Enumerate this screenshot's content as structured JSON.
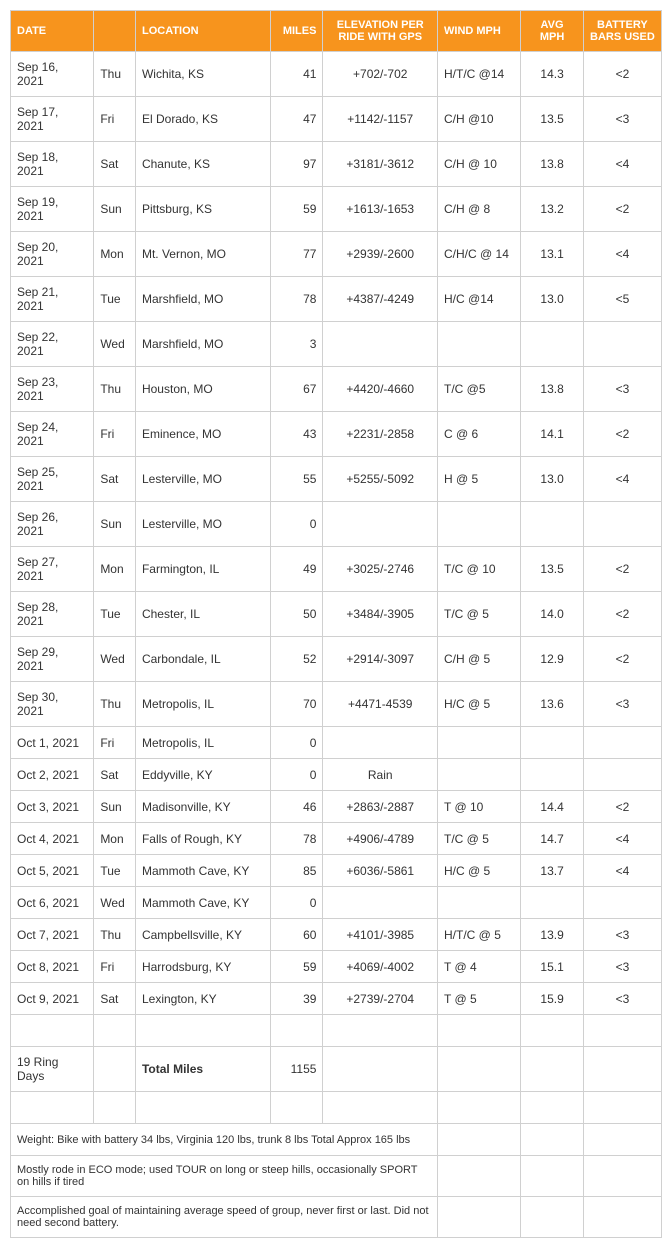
{
  "headers": {
    "date": "DATE",
    "day": "",
    "location": "LOCATION",
    "miles": "MILES",
    "elevation": "ELEVATION PER RIDE WITH GPS",
    "wind": "WIND MPH",
    "avg": "AVG MPH",
    "battery": "BATTERY BARS USED"
  },
  "rows": [
    {
      "date": "Sep 16, 2021",
      "day": "Thu",
      "location": "Wichita, KS",
      "miles": "41",
      "elevation": "+702/-702",
      "wind": "H/T/C @14",
      "avg": "14.3",
      "battery": "<2"
    },
    {
      "date": "Sep 17, 2021",
      "day": "Fri",
      "location": "El Dorado, KS",
      "miles": "47",
      "elevation": "+1142/-1157",
      "wind": "C/H @10",
      "avg": "13.5",
      "battery": "<3"
    },
    {
      "date": "Sep 18, 2021",
      "day": "Sat",
      "location": "Chanute, KS",
      "miles": "97",
      "elevation": "+3181/-3612",
      "wind": "C/H @ 10",
      "avg": "13.8",
      "battery": "<4"
    },
    {
      "date": "Sep 19, 2021",
      "day": "Sun",
      "location": "Pittsburg, KS",
      "miles": "59",
      "elevation": "+1613/-1653",
      "wind": "C/H @ 8",
      "avg": "13.2",
      "battery": "<2"
    },
    {
      "date": "Sep 20, 2021",
      "day": "Mon",
      "location": "Mt. Vernon, MO",
      "miles": "77",
      "elevation": "+2939/-2600",
      "wind": "C/H/C @ 14",
      "avg": "13.1",
      "battery": "<4"
    },
    {
      "date": "Sep 21, 2021",
      "day": "Tue",
      "location": "Marshfield, MO",
      "miles": "78",
      "elevation": "+4387/-4249",
      "wind": "H/C @14",
      "avg": "13.0",
      "battery": "<5"
    },
    {
      "date": "Sep 22, 2021",
      "day": "Wed",
      "location": "Marshfield, MO",
      "miles": "3",
      "elevation": "",
      "wind": "",
      "avg": "",
      "battery": ""
    },
    {
      "date": "Sep 23, 2021",
      "day": "Thu",
      "location": "Houston, MO",
      "miles": "67",
      "elevation": "+4420/-4660",
      "wind": "T/C @5",
      "avg": "13.8",
      "battery": "<3"
    },
    {
      "date": "Sep 24, 2021",
      "day": "Fri",
      "location": "Eminence, MO",
      "miles": "43",
      "elevation": "+2231/-2858",
      "wind": "C @ 6",
      "avg": "14.1",
      "battery": "<2"
    },
    {
      "date": "Sep 25, 2021",
      "day": "Sat",
      "location": "Lesterville, MO",
      "miles": "55",
      "elevation": "+5255/-5092",
      "wind": "H @ 5",
      "avg": "13.0",
      "battery": "<4"
    },
    {
      "date": "Sep 26, 2021",
      "day": "Sun",
      "location": "Lesterville, MO",
      "miles": "0",
      "elevation": "",
      "wind": "",
      "avg": "",
      "battery": ""
    },
    {
      "date": "Sep 27, 2021",
      "day": "Mon",
      "location": "Farmington, IL",
      "miles": "49",
      "elevation": "+3025/-2746",
      "wind": "T/C @ 10",
      "avg": "13.5",
      "battery": "<2"
    },
    {
      "date": "Sep 28, 2021",
      "day": "Tue",
      "location": "Chester, IL",
      "miles": "50",
      "elevation": "+3484/-3905",
      "wind": "T/C @ 5",
      "avg": "14.0",
      "battery": "<2"
    },
    {
      "date": "Sep 29, 2021",
      "day": "Wed",
      "location": "Carbondale, IL",
      "miles": "52",
      "elevation": "+2914/-3097",
      "wind": "C/H @ 5",
      "avg": "12.9",
      "battery": "<2"
    },
    {
      "date": "Sep 30, 2021",
      "day": "Thu",
      "location": "Metropolis, IL",
      "miles": "70",
      "elevation": "+4471-4539",
      "wind": "H/C @ 5",
      "avg": "13.6",
      "battery": "<3"
    },
    {
      "date": "Oct 1, 2021",
      "day": "Fri",
      "location": "Metropolis, IL",
      "miles": "0",
      "elevation": "",
      "wind": "",
      "avg": "",
      "battery": ""
    },
    {
      "date": "Oct 2, 2021",
      "day": "Sat",
      "location": "Eddyville, KY",
      "miles": "0",
      "elevation": "Rain",
      "wind": "",
      "avg": "",
      "battery": ""
    },
    {
      "date": "Oct 3, 2021",
      "day": "Sun",
      "location": "Madisonville, KY",
      "miles": "46",
      "elevation": "+2863/-2887",
      "wind": "T @ 10",
      "avg": "14.4",
      "battery": "<2"
    },
    {
      "date": "Oct 4, 2021",
      "day": "Mon",
      "location": "Falls of Rough, KY",
      "miles": "78",
      "elevation": "+4906/-4789",
      "wind": "T/C @ 5",
      "avg": "14.7",
      "battery": "<4"
    },
    {
      "date": "Oct 5, 2021",
      "day": "Tue",
      "location": "Mammoth Cave, KY",
      "miles": "85",
      "elevation": "+6036/-5861",
      "wind": "H/C @ 5",
      "avg": "13.7",
      "battery": "<4"
    },
    {
      "date": "Oct 6, 2021",
      "day": "Wed",
      "location": "Mammoth Cave, KY",
      "miles": "0",
      "elevation": "",
      "wind": "",
      "avg": "",
      "battery": ""
    },
    {
      "date": "Oct 7, 2021",
      "day": "Thu",
      "location": "Campbellsville, KY",
      "miles": "60",
      "elevation": "+4101/-3985",
      "wind": "H/T/C @ 5",
      "avg": "13.9",
      "battery": "<3"
    },
    {
      "date": "Oct 8, 2021",
      "day": "Fri",
      "location": "Harrodsburg, KY",
      "miles": "59",
      "elevation": "+4069/-4002",
      "wind": "T @ 4",
      "avg": "15.1",
      "battery": "<3"
    },
    {
      "date": "Oct 9, 2021",
      "day": "Sat",
      "location": "Lexington, KY",
      "miles": "39",
      "elevation": "+2739/-2704",
      "wind": "T @ 5",
      "avg": "15.9",
      "battery": "<3"
    }
  ],
  "summary": {
    "label": "19 Ring Days",
    "totalLabel": "Total Miles",
    "totalMiles": "1155"
  },
  "notes": [
    "Weight:   Bike with battery 34 lbs,  Virginia 120 lbs,  trunk 8 lbs   Total  Approx 165 lbs",
    "Mostly rode in ECO mode; used TOUR on long or steep hills, occasionally SPORT on hills if tired",
    "Accomplished goal of maintaining average speed of group, never first or last.  Did not need second battery."
  ],
  "colors": {
    "headerBg": "#f7941d",
    "headerText": "#ffffff",
    "border": "#d0d0d0",
    "text": "#333333"
  }
}
